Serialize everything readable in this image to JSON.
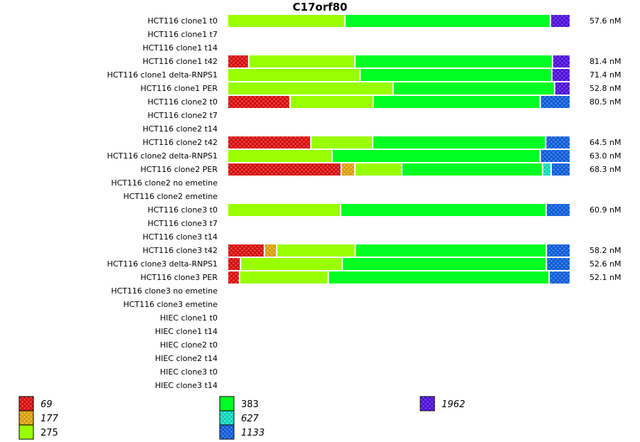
{
  "chart_data": {
    "type": "bar",
    "orientation": "horizontal",
    "stacked": true,
    "normalized_percent": true,
    "title": "C17orf80",
    "xlim": [
      0,
      100
    ],
    "grid": false,
    "legend_placement": "bottom",
    "legend": [
      {
        "label": "69",
        "color": "#ee1111",
        "patterned": true
      },
      {
        "label": "177",
        "color": "#f0b010",
        "patterned": true
      },
      {
        "label": "275",
        "color": "#99ff00",
        "patterned": false
      },
      {
        "label": "383",
        "color": "#00ff22",
        "patterned": false
      },
      {
        "label": "627",
        "color": "#11eecc",
        "patterned": true
      },
      {
        "label": "1133",
        "color": "#1166ee",
        "patterned": true
      },
      {
        "label": "1962",
        "color": "#5511ee",
        "patterned": true
      }
    ],
    "rows": [
      {
        "label": "HCT116 clone1 t0",
        "value_label": "57.6 nM",
        "segments": [
          [
            "275",
            34.4
          ],
          [
            "383",
            60.2
          ],
          [
            "1962",
            5.4
          ]
        ]
      },
      {
        "label": "HCT116 clone1 t7",
        "value_label": "",
        "segments": []
      },
      {
        "label": "HCT116 clone1 t14",
        "value_label": "",
        "segments": []
      },
      {
        "label": "HCT116 clone1 t42",
        "value_label": "81.4 nM",
        "segments": [
          [
            "69",
            6.2
          ],
          [
            "275",
            31.1
          ],
          [
            "383",
            57.9
          ],
          [
            "1962",
            4.8
          ]
        ]
      },
      {
        "label": "HCT116 clone1 delta-RNPS1",
        "value_label": "71.4 nM",
        "segments": [
          [
            "275",
            38.8
          ],
          [
            "383",
            56.2
          ],
          [
            "1962",
            5.0
          ]
        ]
      },
      {
        "label": "HCT116 clone1 PER",
        "value_label": "52.8 nM",
        "segments": [
          [
            "275",
            48.5
          ],
          [
            "383",
            47.3
          ],
          [
            "1962",
            4.2
          ]
        ]
      },
      {
        "label": "HCT116 clone2 t0",
        "value_label": "80.5 nM",
        "segments": [
          [
            "69",
            18.3
          ],
          [
            "275",
            24.4
          ],
          [
            "383",
            48.9
          ],
          [
            "1133",
            8.4
          ]
        ]
      },
      {
        "label": "HCT116 clone2 t7",
        "value_label": "",
        "segments": []
      },
      {
        "label": "HCT116 clone2 t14",
        "value_label": "",
        "segments": []
      },
      {
        "label": "HCT116 clone2 t42",
        "value_label": "64.5 nM",
        "segments": [
          [
            "69",
            24.4
          ],
          [
            "275",
            18.1
          ],
          [
            "383",
            50.7
          ],
          [
            "1133",
            6.8
          ]
        ]
      },
      {
        "label": "HCT116 clone2 delta-RNPS1",
        "value_label": "63.0 nM",
        "segments": [
          [
            "275",
            30.6
          ],
          [
            "383",
            61.0
          ],
          [
            "1133",
            8.4
          ]
        ]
      },
      {
        "label": "HCT116 clone2 PER",
        "value_label": "68.3 nM",
        "segments": [
          [
            "69",
            33.3
          ],
          [
            "177",
            4.0
          ],
          [
            "275",
            13.7
          ],
          [
            "383",
            41.3
          ],
          [
            "627",
            2.5
          ],
          [
            "1133",
            5.2
          ]
        ]
      },
      {
        "label": "HCT116 clone2 no emetine",
        "value_label": "",
        "segments": []
      },
      {
        "label": "HCT116 clone2 emetine",
        "value_label": "",
        "segments": []
      },
      {
        "label": "HCT116 clone3 t0",
        "value_label": "60.9 nM",
        "segments": [
          [
            "275",
            33.1
          ],
          [
            "383",
            60.2
          ],
          [
            "1133",
            6.7
          ]
        ]
      },
      {
        "label": "HCT116 clone3 t7",
        "value_label": "",
        "segments": []
      },
      {
        "label": "HCT116 clone3 t14",
        "value_label": "",
        "segments": []
      },
      {
        "label": "HCT116 clone3 t42",
        "value_label": "58.2 nM",
        "segments": [
          [
            "69",
            10.8
          ],
          [
            "177",
            3.6
          ],
          [
            "275",
            23.0
          ],
          [
            "383",
            56.0
          ],
          [
            "1133",
            6.6
          ]
        ]
      },
      {
        "label": "HCT116 clone3 delta-RNPS1",
        "value_label": "52.6 nM",
        "segments": [
          [
            "69",
            3.8
          ],
          [
            "275",
            29.8
          ],
          [
            "383",
            59.8
          ],
          [
            "1133",
            6.6
          ]
        ]
      },
      {
        "label": "HCT116 clone3 PER",
        "value_label": "52.1 nM",
        "segments": [
          [
            "69",
            3.5
          ],
          [
            "275",
            26.0
          ],
          [
            "383",
            64.7
          ],
          [
            "1133",
            5.8
          ]
        ]
      },
      {
        "label": "HCT116 clone3 no emetine",
        "value_label": "",
        "segments": []
      },
      {
        "label": "HCT116 clone3 emetine",
        "value_label": "",
        "segments": []
      },
      {
        "label": "HIEC clone1 t0",
        "value_label": "",
        "segments": []
      },
      {
        "label": "HIEC clone1 t14",
        "value_label": "",
        "segments": []
      },
      {
        "label": "HIEC clone2 t0",
        "value_label": "",
        "segments": []
      },
      {
        "label": "HIEC clone2 t14",
        "value_label": "",
        "segments": []
      },
      {
        "label": "HIEC clone3 t0",
        "value_label": "",
        "segments": []
      },
      {
        "label": "HIEC clone3 t14",
        "value_label": "",
        "segments": []
      }
    ]
  }
}
